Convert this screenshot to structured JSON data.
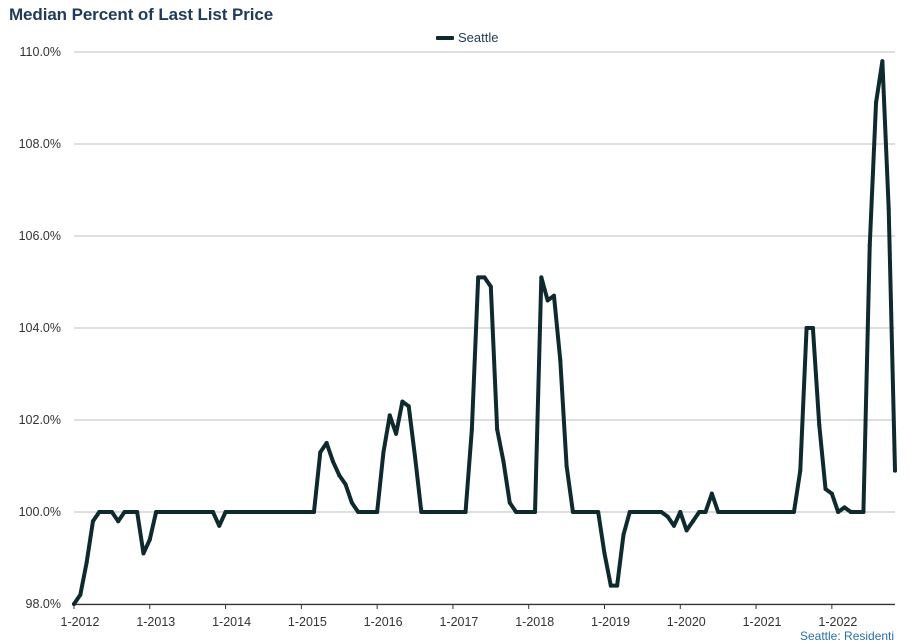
{
  "page_title": "Median Percent of Last List Price",
  "legend": {
    "label": "Seattle",
    "color": "#0f2a2e"
  },
  "footnote": "Seattle: Residenti",
  "chart_data": {
    "type": "line",
    "title": "Median Percent of Last List Price",
    "xlabel": "",
    "ylabel": "",
    "ylim": [
      98,
      110
    ],
    "y_ticks": [
      98,
      100,
      102,
      104,
      106,
      108,
      110
    ],
    "y_tick_labels": [
      "98.0%",
      "100.0%",
      "102.0%",
      "104.0%",
      "106.0%",
      "108.0%",
      "110.0%"
    ],
    "x_tick_labels": [
      "1-2012",
      "1-2013",
      "1-2014",
      "1-2015",
      "1-2016",
      "1-2017",
      "1-2018",
      "1-2019",
      "1-2020",
      "1-2021",
      "1-2022"
    ],
    "x_start": "2012-01",
    "x_end": "2022-05",
    "grid": "horizontal",
    "legend_position": "top-center",
    "series": [
      {
        "name": "Seattle",
        "color": "#0f2a2e",
        "values": [
          98.0,
          98.2,
          98.9,
          99.8,
          100.0,
          100.0,
          100.0,
          99.8,
          100.0,
          100.0,
          100.0,
          99.1,
          99.4,
          100.0,
          100.0,
          100.0,
          100.0,
          100.0,
          100.0,
          100.0,
          100.0,
          100.0,
          100.0,
          99.7,
          100.0,
          100.0,
          100.0,
          100.0,
          100.0,
          100.0,
          100.0,
          100.0,
          100.0,
          100.0,
          100.0,
          100.0,
          100.0,
          100.0,
          100.0,
          101.3,
          101.5,
          101.1,
          100.8,
          100.6,
          100.2,
          100.0,
          100.0,
          100.0,
          100.0,
          101.3,
          102.1,
          101.7,
          102.4,
          102.3,
          101.2,
          100.0,
          100.0,
          100.0,
          100.0,
          100.0,
          100.0,
          100.0,
          100.0,
          101.8,
          105.1,
          105.1,
          104.9,
          101.8,
          101.1,
          100.2,
          100.0,
          100.0,
          100.0,
          100.0,
          105.1,
          104.6,
          104.7,
          103.3,
          101.0,
          100.0,
          100.0,
          100.0,
          100.0,
          100.0,
          99.1,
          98.4,
          98.4,
          99.5,
          100.0,
          100.0,
          100.0,
          100.0,
          100.0,
          100.0,
          99.9,
          99.7,
          100.0,
          99.6,
          99.8,
          100.0,
          100.0,
          100.4,
          100.0,
          100.0,
          100.0,
          100.0,
          100.0,
          100.0,
          100.0,
          100.0,
          100.0,
          100.0,
          100.0,
          100.0,
          100.0,
          100.9,
          104.0,
          104.0,
          101.9,
          100.5,
          100.4,
          100.0,
          100.1,
          100.0,
          100.0,
          100.0,
          105.8,
          108.9,
          109.8,
          106.6,
          100.9
        ]
      }
    ]
  }
}
